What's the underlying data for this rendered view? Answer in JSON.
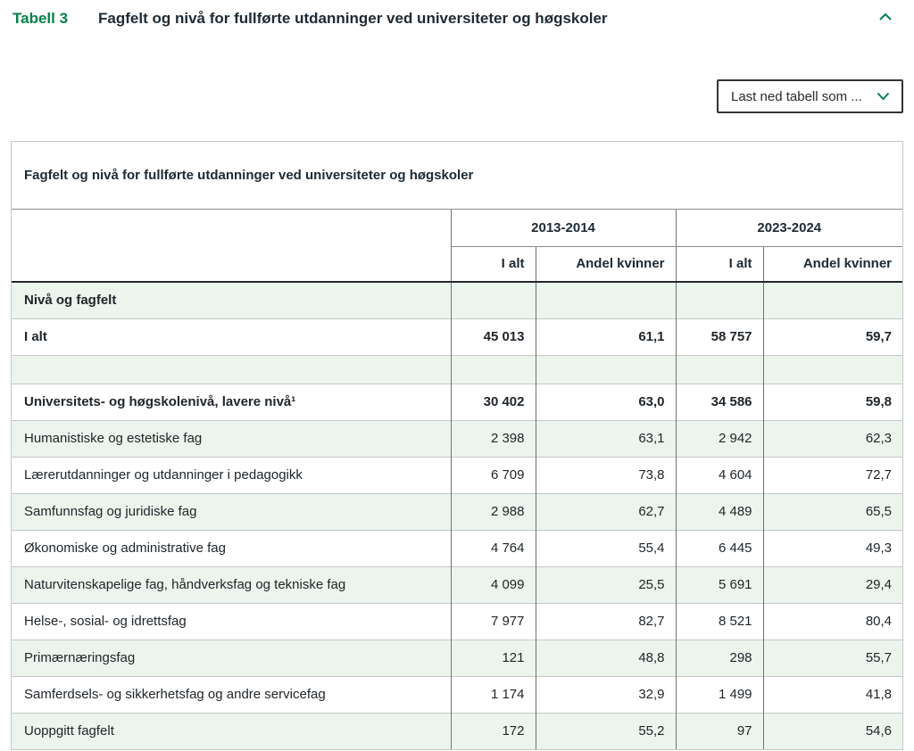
{
  "page": {
    "table_label": "Tabell 3",
    "title": "Fagfelt og nivå for fullførte utdanninger ved universiteter og høgskoler"
  },
  "download": {
    "label": "Last ned tabell som ..."
  },
  "icons": {
    "collapse": "chevron-up-icon",
    "dropdown": "chevron-down-icon"
  },
  "colors": {
    "accent_green": "#00824b",
    "row_green": "#ebf5ed",
    "text_dark": "#20262b"
  },
  "table": {
    "caption": "Fagfelt og nivå for fullførte utdanninger ved universiteter og høgskoler",
    "col_groups": [
      "2013-2014",
      "2023-2024"
    ],
    "sub_headers": [
      "I alt",
      "Andel kvinner",
      "I alt",
      "Andel kvinner"
    ],
    "rows": [
      {
        "label": "Nivå og fagfelt",
        "bold": true,
        "values": [
          "",
          "",
          "",
          ""
        ]
      },
      {
        "label": "I alt",
        "bold": true,
        "values": [
          "45 013",
          "61,1",
          "58 757",
          "59,7"
        ]
      },
      {
        "label": "",
        "spacer": true,
        "values": [
          "",
          "",
          "",
          ""
        ]
      },
      {
        "label": "Universitets- og høgskolenivå, lavere nivå¹",
        "bold": true,
        "values": [
          "30 402",
          "63,0",
          "34 586",
          "59,8"
        ]
      },
      {
        "label": "Humanistiske og estetiske fag",
        "values": [
          "2 398",
          "63,1",
          "2 942",
          "62,3"
        ]
      },
      {
        "label": "Lærerutdanninger og utdanninger i pedagogikk",
        "values": [
          "6 709",
          "73,8",
          "4 604",
          "72,7"
        ]
      },
      {
        "label": "Samfunnsfag og juridiske fag",
        "values": [
          "2 988",
          "62,7",
          "4 489",
          "65,5"
        ]
      },
      {
        "label": "Økonomiske og administrative fag",
        "values": [
          "4 764",
          "55,4",
          "6 445",
          "49,3"
        ]
      },
      {
        "label": "Naturvitenskapelige fag, håndverksfag og tekniske fag",
        "values": [
          "4 099",
          "25,5",
          "5 691",
          "29,4"
        ]
      },
      {
        "label": "Helse-, sosial- og idrettsfag",
        "values": [
          "7 977",
          "82,7",
          "8 521",
          "80,4"
        ]
      },
      {
        "label": "Primærnæringsfag",
        "values": [
          "121",
          "48,8",
          "298",
          "55,7"
        ]
      },
      {
        "label": "Samferdsels- og sikkerhetsfag og andre servicefag",
        "values": [
          "1 174",
          "32,9",
          "1 499",
          "41,8"
        ]
      },
      {
        "label": "Uoppgitt fagfelt",
        "values": [
          "172",
          "55,2",
          "97",
          "54,6"
        ]
      }
    ]
  }
}
